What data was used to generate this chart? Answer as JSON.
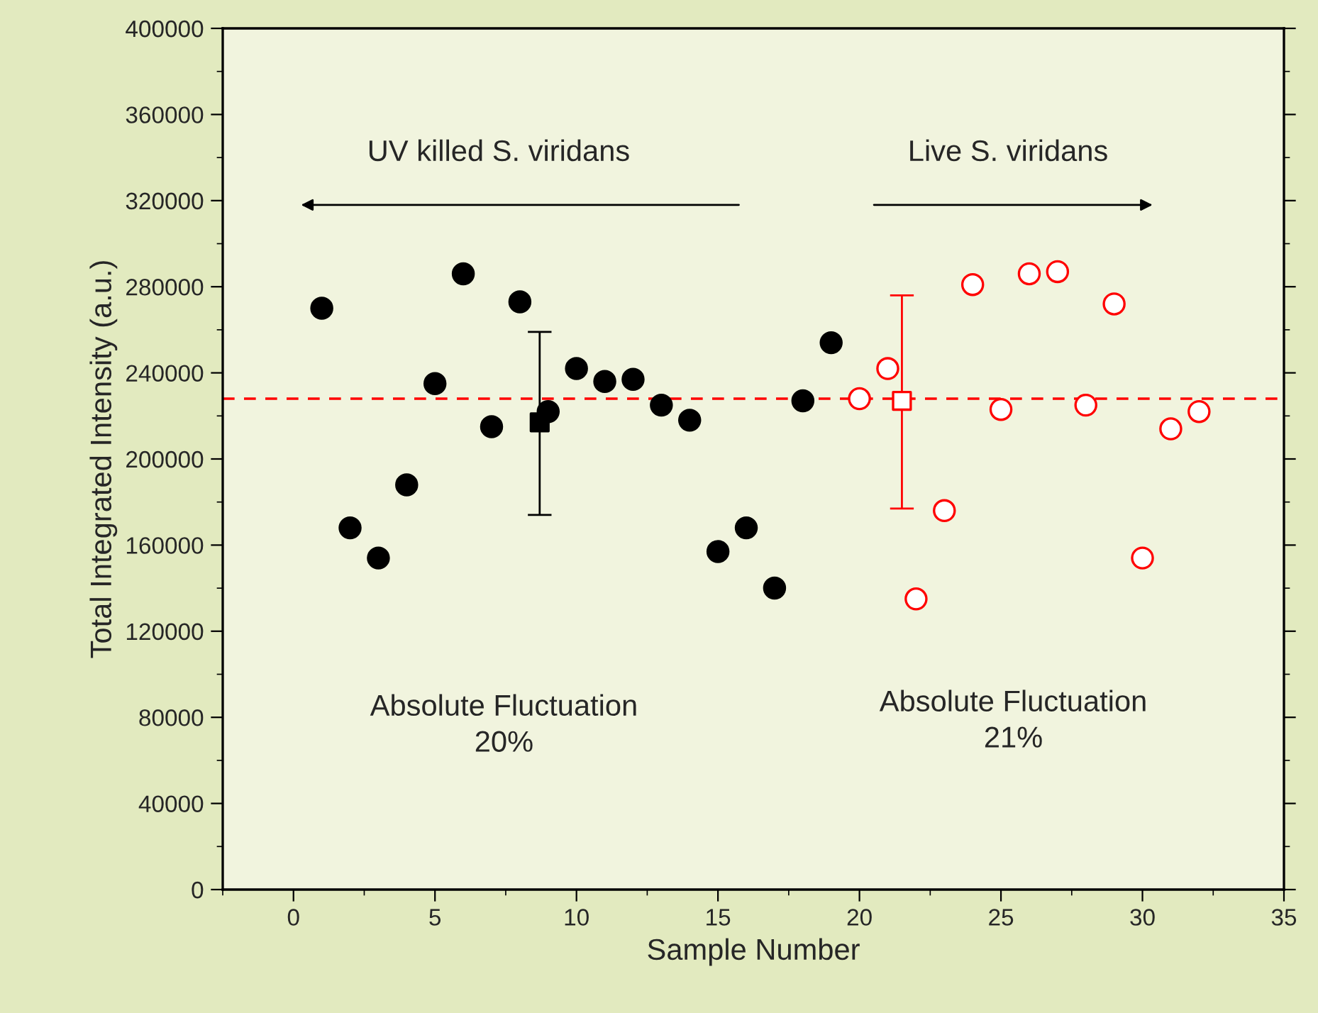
{
  "chart_data": {
    "type": "scatter",
    "xlabel": "Sample Number",
    "ylabel": "Total Integrated Intensity (a.u.)",
    "xlim": [
      -2.5,
      35
    ],
    "xticks": [
      0,
      5,
      10,
      15,
      20,
      25,
      30,
      35
    ],
    "ylim": [
      0,
      400000
    ],
    "yticks": [
      0,
      40000,
      80000,
      120000,
      160000,
      200000,
      240000,
      280000,
      320000,
      360000,
      400000
    ],
    "grid": false,
    "legend": false,
    "series": [
      {
        "color": "#000000",
        "marker": "circle",
        "x": [
          1,
          2,
          3,
          4,
          5,
          6,
          7,
          8,
          9,
          10,
          11,
          12,
          13,
          14,
          15,
          16,
          17,
          18,
          19
        ],
        "values": [
          270000,
          168000,
          154000,
          188000,
          235000,
          286000,
          215000,
          273000,
          222000,
          242000,
          236000,
          237000,
          225000,
          218000,
          157000,
          168000,
          140000,
          227000,
          254000
        ]
      },
      {
        "color": "#000000",
        "marker": "square",
        "x": [
          8.7
        ],
        "values": [
          217000
        ],
        "errors": [
          [
            174000,
            259000
          ]
        ]
      },
      {
        "color": "#ff0000",
        "marker": "circle",
        "x": [
          20,
          21,
          22,
          23,
          24,
          25,
          26,
          27,
          28,
          29,
          30,
          31,
          32
        ],
        "values": [
          228000,
          242000,
          135000,
          176000,
          281000,
          223000,
          286000,
          287000,
          225000,
          272000,
          154000,
          214000,
          222000
        ]
      },
      {
        "color": "#ff0000",
        "marker": "square",
        "x": [
          21.5
        ],
        "values": [
          227000
        ],
        "errors": [
          [
            177000,
            276000
          ]
        ]
      }
    ],
    "ref_lines": [
      {
        "axis": "y",
        "value": 228000,
        "color": "#ff0000",
        "line_style": "dashed"
      }
    ],
    "annotations": [
      "UV killed S. viridans",
      "Live S. viridans",
      "Absolute Fluctuation\n20%",
      "Absolute Fluctuation\n21%"
    ]
  }
}
